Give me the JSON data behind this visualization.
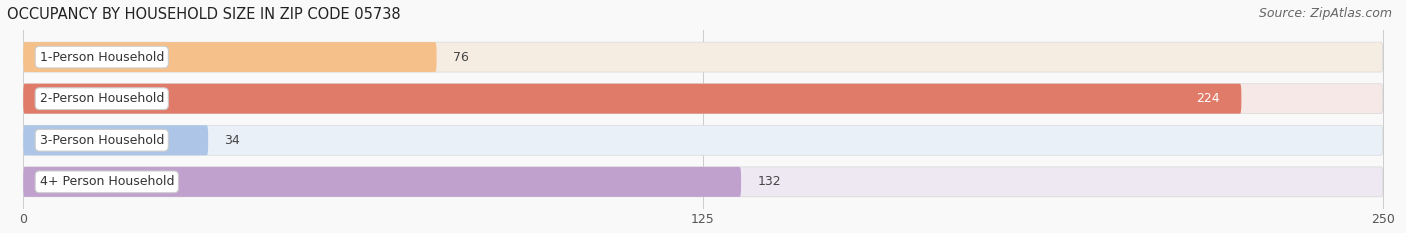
{
  "title": "OCCUPANCY BY HOUSEHOLD SIZE IN ZIP CODE 05738",
  "source": "Source: ZipAtlas.com",
  "categories": [
    "1-Person Household",
    "2-Person Household",
    "3-Person Household",
    "4+ Person Household"
  ],
  "values": [
    76,
    224,
    34,
    132
  ],
  "bar_colors": [
    "#f5c eighteen a",
    "#e07b6a",
    "#aec6e8",
    "#c0a0cc"
  ],
  "bar_bg_colors": [
    "#f5ede2",
    "#f5e8e6",
    "#eaf0f8",
    "#ede8f2"
  ],
  "bar_colors_fixed": [
    "#f5c08a",
    "#e07b6a",
    "#adc6e8",
    "#c0a0cc"
  ],
  "xlim_min": 0,
  "xlim_max": 250,
  "xticks": [
    0,
    125,
    250
  ],
  "title_fontsize": 10.5,
  "source_fontsize": 9,
  "tick_fontsize": 9,
  "bar_label_fontsize": 9,
  "category_fontsize": 9,
  "background_color": "#f8f8f8"
}
